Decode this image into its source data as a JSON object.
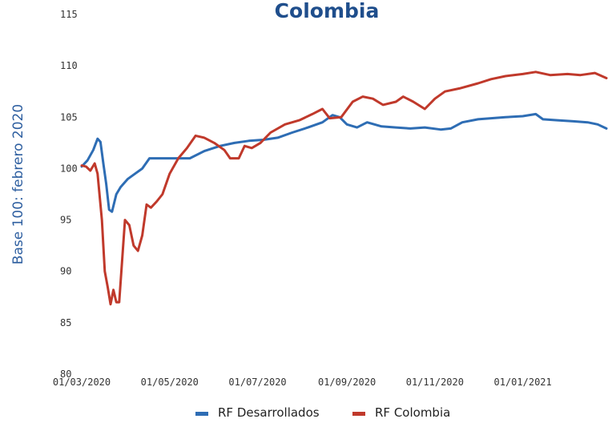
{
  "chart_data": {
    "type": "line",
    "title": "Colombia",
    "ylabel": "Base 100: febrero 2020",
    "xlabel": "",
    "ylim": [
      80,
      115
    ],
    "yticks": [
      80,
      85,
      90,
      95,
      100,
      105,
      110,
      115
    ],
    "xticks": [
      "01/03/2020",
      "01/05/2020",
      "01/07/2020",
      "01/09/2020",
      "01/11/2020",
      "01/01/2021"
    ],
    "xrange": [
      "2020-03-01",
      "2021-02-28"
    ],
    "grid": false,
    "legend": "bottom",
    "series": [
      {
        "name": "RF Desarrollados",
        "color": "#2e6db4",
        "points": [
          [
            "2020-03-01",
            100.2
          ],
          [
            "2020-03-05",
            100.8
          ],
          [
            "2020-03-09",
            101.8
          ],
          [
            "2020-03-12",
            102.9
          ],
          [
            "2020-03-14",
            102.6
          ],
          [
            "2020-03-16",
            100.5
          ],
          [
            "2020-03-18",
            98.5
          ],
          [
            "2020-03-20",
            96.0
          ],
          [
            "2020-03-22",
            95.8
          ],
          [
            "2020-03-25",
            97.5
          ],
          [
            "2020-03-28",
            98.2
          ],
          [
            "2020-04-02",
            99.0
          ],
          [
            "2020-04-07",
            99.5
          ],
          [
            "2020-04-12",
            100.0
          ],
          [
            "2020-04-17",
            101.0
          ],
          [
            "2020-04-25",
            101.0
          ],
          [
            "2020-05-05",
            101.0
          ],
          [
            "2020-05-15",
            101.0
          ],
          [
            "2020-05-25",
            101.7
          ],
          [
            "2020-06-05",
            102.2
          ],
          [
            "2020-06-15",
            102.5
          ],
          [
            "2020-06-25",
            102.7
          ],
          [
            "2020-07-05",
            102.8
          ],
          [
            "2020-07-15",
            103.0
          ],
          [
            "2020-07-25",
            103.5
          ],
          [
            "2020-08-05",
            104.0
          ],
          [
            "2020-08-15",
            104.5
          ],
          [
            "2020-08-22",
            105.2
          ],
          [
            "2020-08-27",
            105.0
          ],
          [
            "2020-09-01",
            104.3
          ],
          [
            "2020-09-08",
            104.0
          ],
          [
            "2020-09-15",
            104.5
          ],
          [
            "2020-09-25",
            104.1
          ],
          [
            "2020-10-05",
            104.0
          ],
          [
            "2020-10-15",
            103.9
          ],
          [
            "2020-10-25",
            104.0
          ],
          [
            "2020-11-05",
            103.8
          ],
          [
            "2020-11-12",
            103.9
          ],
          [
            "2020-11-20",
            104.5
          ],
          [
            "2020-12-01",
            104.8
          ],
          [
            "2020-12-10",
            104.9
          ],
          [
            "2020-12-20",
            105.0
          ],
          [
            "2021-01-01",
            105.1
          ],
          [
            "2021-01-10",
            105.3
          ],
          [
            "2021-01-15",
            104.8
          ],
          [
            "2021-01-25",
            104.7
          ],
          [
            "2021-02-05",
            104.6
          ],
          [
            "2021-02-15",
            104.5
          ],
          [
            "2021-02-22",
            104.3
          ],
          [
            "2021-02-28",
            103.9
          ]
        ]
      },
      {
        "name": "RF Colombia",
        "color": "#c0392b",
        "points": [
          [
            "2020-03-01",
            100.3
          ],
          [
            "2020-03-04",
            100.2
          ],
          [
            "2020-03-07",
            99.8
          ],
          [
            "2020-03-10",
            100.5
          ],
          [
            "2020-03-12",
            99.5
          ],
          [
            "2020-03-15",
            95.0
          ],
          [
            "2020-03-17",
            90.0
          ],
          [
            "2020-03-19",
            88.5
          ],
          [
            "2020-03-21",
            86.8
          ],
          [
            "2020-03-23",
            88.2
          ],
          [
            "2020-03-25",
            87.0
          ],
          [
            "2020-03-27",
            87.0
          ],
          [
            "2020-03-29",
            91.0
          ],
          [
            "2020-03-31",
            95.0
          ],
          [
            "2020-04-03",
            94.5
          ],
          [
            "2020-04-06",
            92.5
          ],
          [
            "2020-04-09",
            92.0
          ],
          [
            "2020-04-12",
            93.5
          ],
          [
            "2020-04-15",
            96.5
          ],
          [
            "2020-04-18",
            96.2
          ],
          [
            "2020-04-22",
            96.8
          ],
          [
            "2020-04-26",
            97.5
          ],
          [
            "2020-05-01",
            99.5
          ],
          [
            "2020-05-07",
            101.0
          ],
          [
            "2020-05-13",
            102.0
          ],
          [
            "2020-05-19",
            103.2
          ],
          [
            "2020-05-25",
            103.0
          ],
          [
            "2020-06-01",
            102.5
          ],
          [
            "2020-06-08",
            101.8
          ],
          [
            "2020-06-12",
            101.0
          ],
          [
            "2020-06-18",
            101.0
          ],
          [
            "2020-06-22",
            102.2
          ],
          [
            "2020-06-27",
            102.0
          ],
          [
            "2020-07-03",
            102.5
          ],
          [
            "2020-07-10",
            103.5
          ],
          [
            "2020-07-20",
            104.3
          ],
          [
            "2020-07-30",
            104.7
          ],
          [
            "2020-08-08",
            105.3
          ],
          [
            "2020-08-15",
            105.8
          ],
          [
            "2020-08-20",
            104.9
          ],
          [
            "2020-08-28",
            105.0
          ],
          [
            "2020-09-05",
            106.5
          ],
          [
            "2020-09-12",
            107.0
          ],
          [
            "2020-09-19",
            106.8
          ],
          [
            "2020-09-26",
            106.2
          ],
          [
            "2020-10-05",
            106.5
          ],
          [
            "2020-10-10",
            107.0
          ],
          [
            "2020-10-17",
            106.5
          ],
          [
            "2020-10-25",
            105.8
          ],
          [
            "2020-11-01",
            106.8
          ],
          [
            "2020-11-08",
            107.5
          ],
          [
            "2020-11-18",
            107.8
          ],
          [
            "2020-12-01",
            108.3
          ],
          [
            "2020-12-10",
            108.7
          ],
          [
            "2020-12-20",
            109.0
          ],
          [
            "2021-01-01",
            109.2
          ],
          [
            "2021-01-10",
            109.4
          ],
          [
            "2021-01-20",
            109.1
          ],
          [
            "2021-02-01",
            109.2
          ],
          [
            "2021-02-10",
            109.1
          ],
          [
            "2021-02-20",
            109.3
          ],
          [
            "2021-02-28",
            108.8
          ]
        ]
      }
    ]
  }
}
